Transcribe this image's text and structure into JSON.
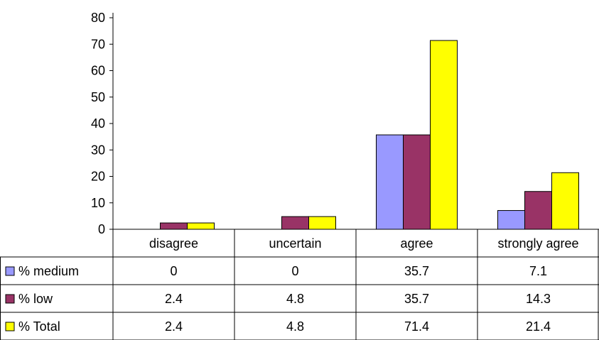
{
  "chart_data": {
    "type": "bar",
    "categories": [
      "disagree",
      "uncertain",
      "agree",
      "strongly agree"
    ],
    "series": [
      {
        "name": "% medium",
        "values": [
          0,
          0,
          35.7,
          7.1
        ],
        "labels": [
          "0",
          "0",
          "35.7",
          "7.1"
        ],
        "color": "#9999ff"
      },
      {
        "name": "% low",
        "values": [
          2.4,
          4.8,
          35.7,
          14.3
        ],
        "labels": [
          "2.4",
          "4.8",
          "35.7",
          "14.3"
        ],
        "color": "#993366"
      },
      {
        "name": "% Total",
        "values": [
          2.4,
          4.8,
          71.4,
          21.4
        ],
        "labels": [
          "2.4",
          "4.8",
          "71.4",
          "21.4"
        ],
        "color": "#ffff00"
      }
    ],
    "ylim": [
      0,
      80
    ],
    "yticks": [
      "0",
      "10",
      "20",
      "30",
      "40",
      "50",
      "60",
      "70",
      "80"
    ],
    "legend": "data-table",
    "grid": false
  }
}
